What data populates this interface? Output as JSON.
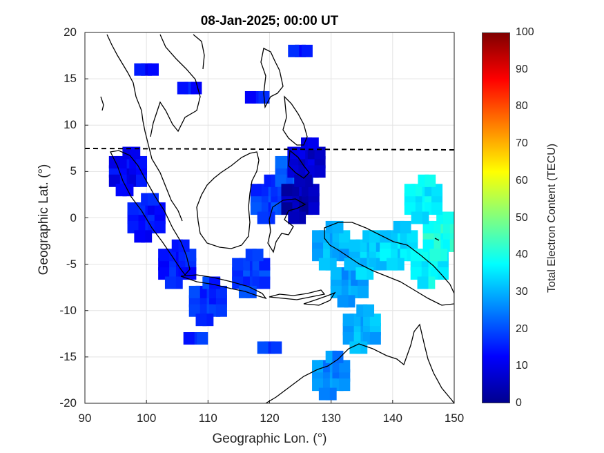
{
  "title": "08-Jan-2025; 00:00 UT",
  "chart_data": {
    "type": "heatmap",
    "title": "08-Jan-2025; 00:00 UT",
    "xlabel": "Geographic Lon. (°)",
    "ylabel": "Geographic Lat. (°)",
    "xlim": [
      90,
      150
    ],
    "ylim": [
      -20,
      20
    ],
    "x_ticks": [
      90,
      100,
      110,
      120,
      130,
      140,
      150
    ],
    "y_ticks": [
      -20,
      -15,
      -10,
      -5,
      0,
      5,
      10,
      15,
      20
    ],
    "x_tick_labels": [
      "90",
      "100",
      "110",
      "120",
      "130",
      "140",
      "150"
    ],
    "y_tick_labels": [
      "-20",
      "-15",
      "-10",
      "-5",
      "0",
      "5",
      "10",
      "15",
      "20"
    ],
    "grid": true,
    "colorbar": {
      "label": "Total Electron Content (TECU)",
      "range": [
        0,
        100
      ],
      "ticks": [
        "0",
        "10",
        "20",
        "30",
        "40",
        "50",
        "60",
        "70",
        "80",
        "90",
        "100"
      ],
      "colormap": "jet"
    },
    "tec_regions_note_values": [
      {
        "lon": 97,
        "lat": 5,
        "tec": 12
      },
      {
        "lon": 100,
        "lat": 0,
        "tec": 14
      },
      {
        "lon": 105,
        "lat": -5,
        "tec": 15
      },
      {
        "lon": 110,
        "lat": -9,
        "tec": 17
      },
      {
        "lon": 117,
        "lat": -6,
        "tec": 18
      },
      {
        "lon": 120,
        "lat": 2,
        "tec": 18
      },
      {
        "lon": 124,
        "lat": 5,
        "tec": 22
      },
      {
        "lon": 125,
        "lat": 2,
        "tec": 5
      },
      {
        "lon": 126,
        "lat": 6,
        "tec": 8
      },
      {
        "lon": 130,
        "lat": -3,
        "tec": 30
      },
      {
        "lon": 133,
        "lat": -7,
        "tec": 28
      },
      {
        "lon": 136,
        "lat": -4,
        "tec": 32
      },
      {
        "lon": 141,
        "lat": -3,
        "tec": 34
      },
      {
        "lon": 146,
        "lat": -5,
        "tec": 37
      },
      {
        "lon": 148,
        "lat": -2,
        "tec": 40
      },
      {
        "lon": 145,
        "lat": 2,
        "tec": 36
      },
      {
        "lon": 135,
        "lat": -12,
        "tec": 30
      },
      {
        "lon": 130,
        "lat": -17,
        "tec": 26
      },
      {
        "lon": 100,
        "lat": 16,
        "tec": 12
      },
      {
        "lon": 107,
        "lat": 14,
        "tec": 14
      },
      {
        "lon": 118,
        "lat": 13,
        "tec": 15
      },
      {
        "lon": 125,
        "lat": 18,
        "tec": 16
      },
      {
        "lon": 108,
        "lat": -13,
        "tec": 16
      },
      {
        "lon": 120,
        "lat": -14,
        "tec": 18
      }
    ]
  }
}
